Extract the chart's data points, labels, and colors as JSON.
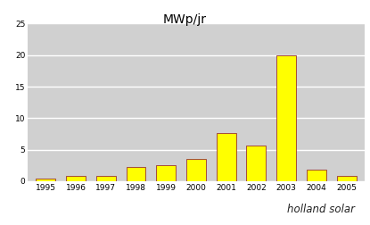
{
  "title": "MWp/jr",
  "categories": [
    "1995",
    "1996",
    "1997",
    "1998",
    "1999",
    "2000",
    "2001",
    "2002",
    "2003",
    "2004",
    "2005"
  ],
  "values": [
    0.4,
    0.8,
    0.8,
    2.2,
    2.6,
    3.5,
    7.6,
    5.7,
    20.0,
    1.8,
    0.8
  ],
  "bar_color": "#ffff00",
  "bar_edge_color": "#993333",
  "ylim": [
    0,
    25
  ],
  "yticks": [
    0,
    5,
    10,
    15,
    20,
    25
  ],
  "plot_bg_color": "#d0d0d0",
  "outer_bg_color": "#ffffff",
  "grid_color": "#ffffff",
  "title_fontsize": 10,
  "tick_fontsize": 6.5,
  "footer_red": "#cc2222",
  "footer_blue": "#1a1a8c",
  "footer_text": "holland solar",
  "footer_text_color": "#222222"
}
